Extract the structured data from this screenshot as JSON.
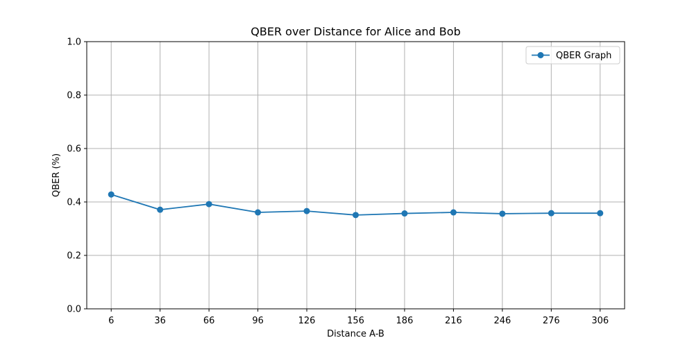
{
  "chart_data": {
    "type": "line",
    "title": "QBER over Distance for Alice and Bob",
    "xlabel": "Distance A-B",
    "ylabel": "QBER (%)",
    "x": [
      6,
      36,
      66,
      96,
      126,
      156,
      186,
      216,
      246,
      276,
      306
    ],
    "x_tick_labels": [
      "6",
      "36",
      "66",
      "96",
      "126",
      "156",
      "186",
      "216",
      "246",
      "276",
      "306"
    ],
    "ylim": [
      0.0,
      1.0
    ],
    "y_ticks": [
      0.0,
      0.2,
      0.4,
      0.6,
      0.8,
      1.0
    ],
    "y_tick_labels": [
      "0.0",
      "0.2",
      "0.4",
      "0.6",
      "0.8",
      "1.0"
    ],
    "grid": true,
    "legend_position": "top-right",
    "series": [
      {
        "name": "QBER Graph",
        "color": "#1f77b4",
        "marker": "circle",
        "values": [
          0.428,
          0.371,
          0.392,
          0.361,
          0.366,
          0.351,
          0.357,
          0.361,
          0.356,
          0.358,
          0.358
        ]
      }
    ]
  }
}
